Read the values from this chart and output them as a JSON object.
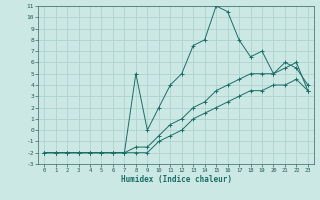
{
  "xlabel": "Humidex (Indice chaleur)",
  "bg_color": "#cce8e4",
  "grid_color": "#aacfcc",
  "line_color": "#1a6e65",
  "xlim": [
    -0.5,
    23.5
  ],
  "ylim": [
    -3,
    11
  ],
  "xticks": [
    0,
    1,
    2,
    3,
    4,
    5,
    6,
    7,
    8,
    9,
    10,
    11,
    12,
    13,
    14,
    15,
    16,
    17,
    18,
    19,
    20,
    21,
    22,
    23
  ],
  "yticks": [
    -3,
    -2,
    -1,
    0,
    1,
    2,
    3,
    4,
    5,
    6,
    7,
    8,
    9,
    10,
    11
  ],
  "line1_x": [
    0,
    1,
    2,
    3,
    4,
    5,
    6,
    7,
    8,
    9,
    10,
    11,
    12,
    13,
    14,
    15,
    16,
    17,
    18,
    19,
    20,
    21,
    22,
    23
  ],
  "line1_y": [
    -2,
    -2,
    -2,
    -2,
    -2,
    -2,
    -2,
    -2,
    5,
    0,
    2,
    4,
    5,
    7.5,
    8,
    11,
    10.5,
    8,
    6.5,
    7,
    5,
    6,
    5.5,
    4
  ],
  "line2_x": [
    0,
    1,
    2,
    3,
    4,
    5,
    6,
    7,
    8,
    9,
    10,
    11,
    12,
    13,
    14,
    15,
    16,
    17,
    18,
    19,
    20,
    21,
    22,
    23
  ],
  "line2_y": [
    -2,
    -2,
    -2,
    -2,
    -2,
    -2,
    -2,
    -2,
    -1.5,
    -1.5,
    -0.5,
    0.5,
    1,
    2,
    2.5,
    3.5,
    4,
    4.5,
    5,
    5,
    5,
    5.5,
    6,
    3.5
  ],
  "line3_x": [
    0,
    1,
    2,
    3,
    4,
    5,
    6,
    7,
    8,
    9,
    10,
    11,
    12,
    13,
    14,
    15,
    16,
    17,
    18,
    19,
    20,
    21,
    22,
    23
  ],
  "line3_y": [
    -2,
    -2,
    -2,
    -2,
    -2,
    -2,
    -2,
    -2,
    -2,
    -2,
    -1,
    -0.5,
    0,
    1,
    1.5,
    2,
    2.5,
    3,
    3.5,
    3.5,
    4,
    4,
    4.5,
    3.5
  ]
}
